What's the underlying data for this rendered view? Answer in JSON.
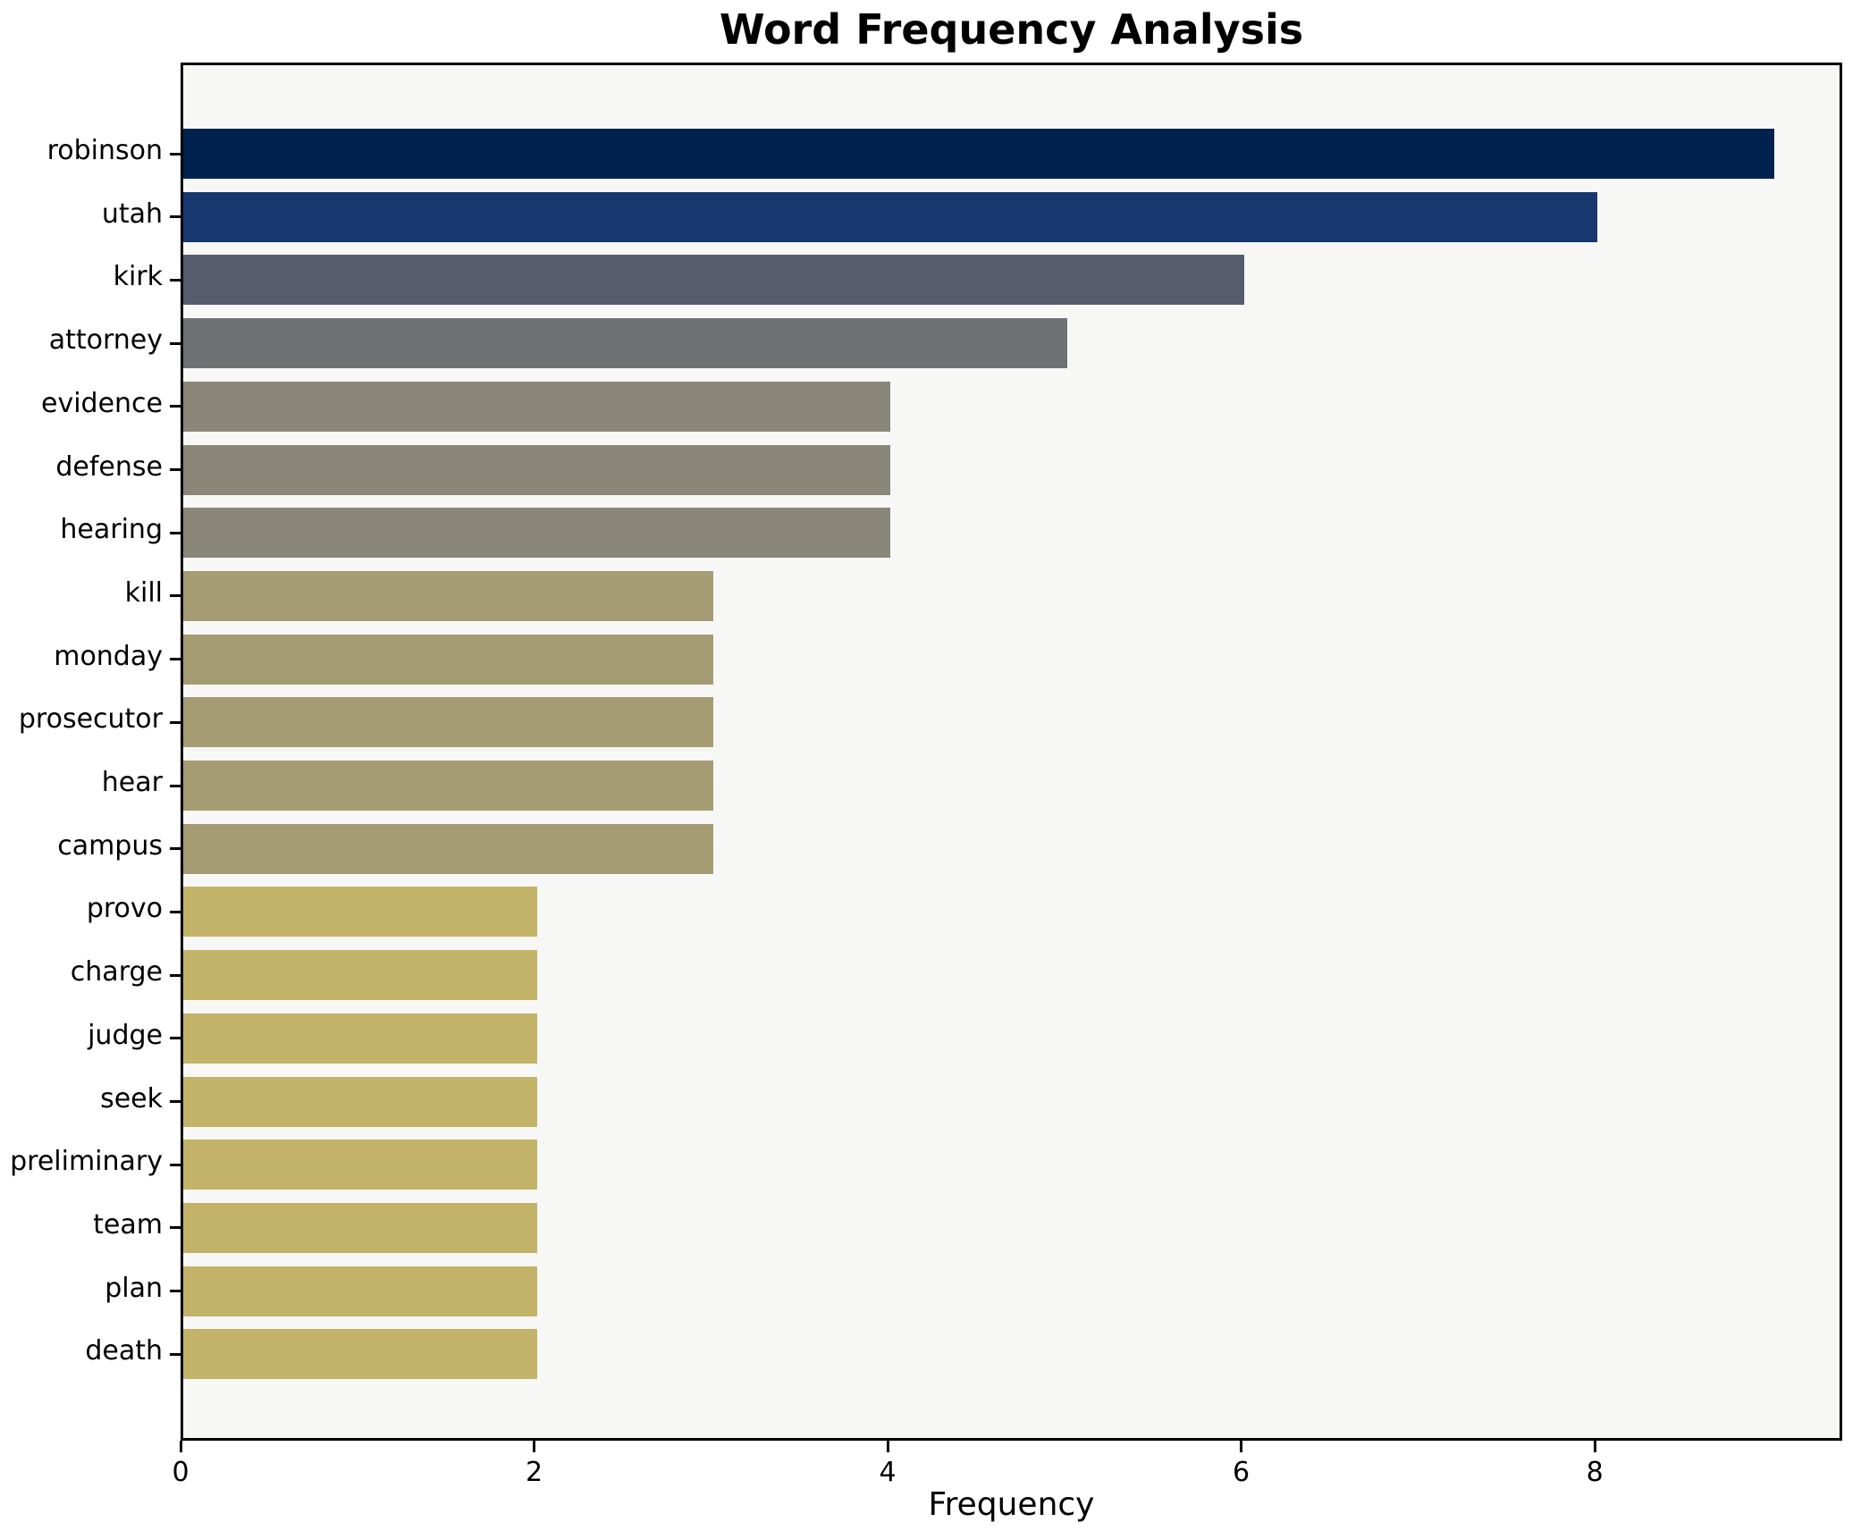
{
  "chart_data": {
    "type": "bar",
    "orientation": "horizontal",
    "title": "Word Frequency Analysis",
    "xlabel": "Frequency",
    "ylabel": "",
    "categories": [
      "robinson",
      "utah",
      "kirk",
      "attorney",
      "evidence",
      "defense",
      "hearing",
      "kill",
      "monday",
      "prosecutor",
      "hear",
      "campus",
      "provo",
      "charge",
      "judge",
      "seek",
      "preliminary",
      "team",
      "plan",
      "death"
    ],
    "values": [
      9,
      8,
      6,
      5,
      4,
      4,
      4,
      3,
      3,
      3,
      3,
      3,
      2,
      2,
      2,
      2,
      2,
      2,
      2,
      2
    ],
    "xlim": [
      0,
      9.4
    ],
    "xticks": [
      0,
      2,
      4,
      6,
      8
    ],
    "grid": false,
    "legend_position": "none",
    "bar_colors": [
      "#00224e",
      "#17376e",
      "#575d6d",
      "#707173",
      "#8a8678",
      "#8a8678",
      "#8a8678",
      "#a59c74",
      "#a59c74",
      "#a59c74",
      "#a59c74",
      "#a59c74",
      "#c3b369",
      "#c3b369",
      "#c3b369",
      "#c3b369",
      "#c3b369",
      "#c3b369",
      "#c3b369",
      "#c3b369"
    ],
    "plot_background": "#f7f7f6",
    "figure_background": "#ffffff",
    "axis_color": "#000000"
  }
}
